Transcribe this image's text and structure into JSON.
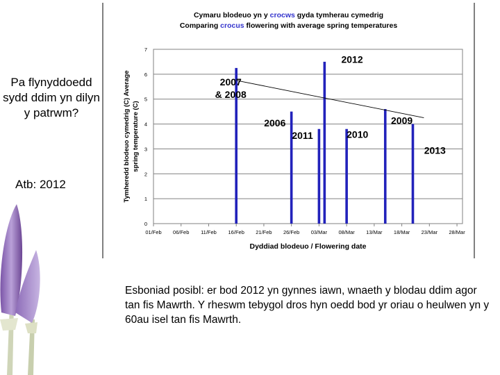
{
  "slide": {
    "question": "Pa flynyddoedd sydd ddim yn dilyn y patrwm?",
    "answer": "Atb: 2012",
    "explanation": {
      "label": "Esboniad posibl",
      "text": ": er bod 2012 yn gynnes iawn, wnaeth y blodau ddim agor tan fis Mawrth. Y rheswm tebygol dros hyn oedd bod yr oriau o heulwen yn y 60au isel tan fis Mawrth."
    },
    "flower_icon": "crocus-flower-photo"
  },
  "chart_title": {
    "line1": {
      "pre": "Cymaru blodeuo yn y ",
      "highlight": "crocws",
      "post": " gyda tymherau cymedrig"
    },
    "line2": {
      "pre": "Comparing ",
      "highlight": "crocus",
      "post": " flowering with average spring temperatures"
    },
    "highlight_color": "#3333cc"
  },
  "chart_data": {
    "type": "bar",
    "xlabel": "Dyddiad blodeuo / Flowering date",
    "ylabel_lines": [
      "Tymheredd blodeuo cymedrig (C) Average",
      "spring temperature (C)"
    ],
    "ylim": [
      0,
      7
    ],
    "yticks": [
      0,
      1,
      2,
      3,
      4,
      5,
      6,
      7
    ],
    "xticks": [
      "01/Feb",
      "06/Feb",
      "11/Feb",
      "16/Feb",
      "21/Feb",
      "26/Feb",
      "03/Mar",
      "08/Mar",
      "13/Mar",
      "18/Mar",
      "23/Mar",
      "28/Mar"
    ],
    "x_start": "2012-02-01",
    "grid": "horizontal",
    "bar_color": "#2222bb",
    "bars": [
      {
        "year": "2007 & 2008",
        "date": "2012-02-16",
        "value": 6.25
      },
      {
        "year": "2006",
        "date": "2012-02-26",
        "value": 4.5
      },
      {
        "year": "2011",
        "date": "2012-03-02",
        "value": 3.8
      },
      {
        "year": "2012",
        "date": "2012-03-03",
        "value": 6.5
      },
      {
        "year": "2010",
        "date": "2012-03-07",
        "value": 3.8
      },
      {
        "year": "2009",
        "date": "2012-03-14",
        "value": 4.6
      },
      {
        "year": "2013",
        "date": "2012-03-19",
        "value": 4.0
      }
    ],
    "trendline": {
      "from": {
        "date": "2012-02-16",
        "value": 5.75
      },
      "to": {
        "date": "2012-03-21",
        "value": 4.25
      }
    },
    "annotations": [
      {
        "lines": [
          "2007",
          "& 2008"
        ],
        "date": "2012-02-15",
        "value": 5.55,
        "anchor": "middle"
      },
      {
        "lines": [
          "2012"
        ],
        "date": "2012-03-08",
        "value": 6.45,
        "anchor": "middle"
      },
      {
        "lines": [
          "2006"
        ],
        "date": "2012-02-23",
        "value": 3.9,
        "anchor": "middle"
      },
      {
        "lines": [
          "2011"
        ],
        "date": "2012-02-28",
        "value": 3.4,
        "anchor": "middle"
      },
      {
        "lines": [
          "2010"
        ],
        "date": "2012-03-07",
        "value": 3.45,
        "anchor": "start"
      },
      {
        "lines": [
          "2009"
        ],
        "date": "2012-03-17",
        "value": 4.0,
        "anchor": "middle"
      },
      {
        "lines": [
          "2013"
        ],
        "date": "2012-03-23",
        "value": 2.8,
        "anchor": "middle"
      }
    ]
  }
}
